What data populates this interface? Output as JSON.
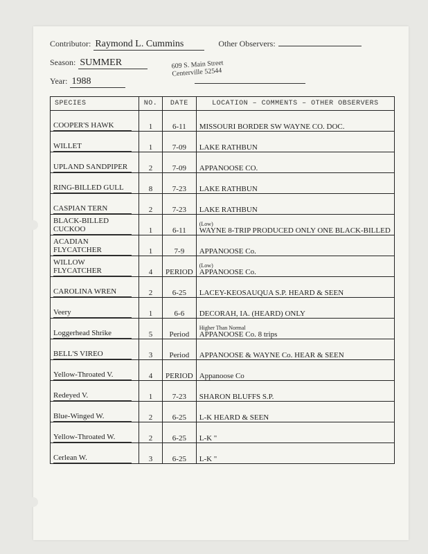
{
  "header": {
    "contributor_label": "Contributor:",
    "contributor_value": "Raymond L. Cummins",
    "other_observers_label": "Other Observers:",
    "other_observers_value": "",
    "season_label": "Season:",
    "season_value": "SUMMER",
    "year_label": "Year:",
    "year_value": "1988",
    "address_line1": "609 S. Main Street",
    "address_line2": "Centerville 52544"
  },
  "table": {
    "headers": {
      "species": "SPECIES",
      "no": "NO.",
      "date": "DATE",
      "location": "LOCATION – COMMENTS – OTHER OBSERVERS"
    },
    "rows": [
      {
        "species": "COOPER'S HAWK",
        "no": "1",
        "date": "6-11",
        "loc": "MISSOURI BORDER SW WAYNE CO.   DOC."
      },
      {
        "species": "WILLET",
        "no": "1",
        "date": "7-09",
        "loc": "LAKE RATHBUN"
      },
      {
        "species": "UPLAND SANDPIPER",
        "no": "2",
        "date": "7-09",
        "loc": "APPANOOSE CO."
      },
      {
        "species": "RING-BILLED GULL",
        "no": "8",
        "date": "7-23",
        "loc": "LAKE RATHBUN"
      },
      {
        "species": "CASPIAN TERN",
        "no": "2",
        "date": "7-23",
        "loc": "LAKE RATHBUN"
      },
      {
        "species": "BLACK-BILLED CUCKOO",
        "no": "1",
        "date": "6-11",
        "loc": "WAYNE  8-TRIP PRODUCED ONLY ONE BLACK-BILLED",
        "note_above": "(Low)"
      },
      {
        "species": "ACADIAN FLYCATCHER",
        "no": "1",
        "date": "7-9",
        "loc": "APPANOOSE Co."
      },
      {
        "species": "WILLOW FLYCATCHER",
        "no": "4",
        "date": "PERIOD",
        "loc": "APPANOOSE Co.",
        "note_above": "(Low)"
      },
      {
        "species": "CAROLINA WREN",
        "no": "2",
        "date": "6-25",
        "loc": "LACEY-KEOSAUQUA S.P.  HEARD & SEEN"
      },
      {
        "species": "Veery",
        "no": "1",
        "date": "6-6",
        "loc": "DECORAH, IA.  (HEARD) ONLY"
      },
      {
        "species": "Loggerhead Shrike",
        "no": "5",
        "date": "Period",
        "loc": "APPANOOSE Co.   8 trips",
        "note_above": "Higher Than Normal"
      },
      {
        "species": "BELL'S VIREO",
        "no": "3",
        "date": "Period",
        "loc": "APPANOOSE & WAYNE Co.  HEAR & SEEN"
      },
      {
        "species": "Yellow-Throated V.",
        "no": "4",
        "date": "PERIOD",
        "loc": "Appanoose Co"
      },
      {
        "species": "Redeyed V.",
        "no": "1",
        "date": "7-23",
        "loc": "SHARON BLUFFS S.P."
      },
      {
        "species": "Blue-Winged W.",
        "no": "2",
        "date": "6-25",
        "loc": "L-K  HEARD & SEEN"
      },
      {
        "species": "Yellow-Throated W.",
        "no": "2",
        "date": "6-25",
        "loc": "L-K      \""
      },
      {
        "species": "Cerlean W.",
        "no": "3",
        "date": "6-25",
        "loc": "L-K      \""
      }
    ]
  }
}
